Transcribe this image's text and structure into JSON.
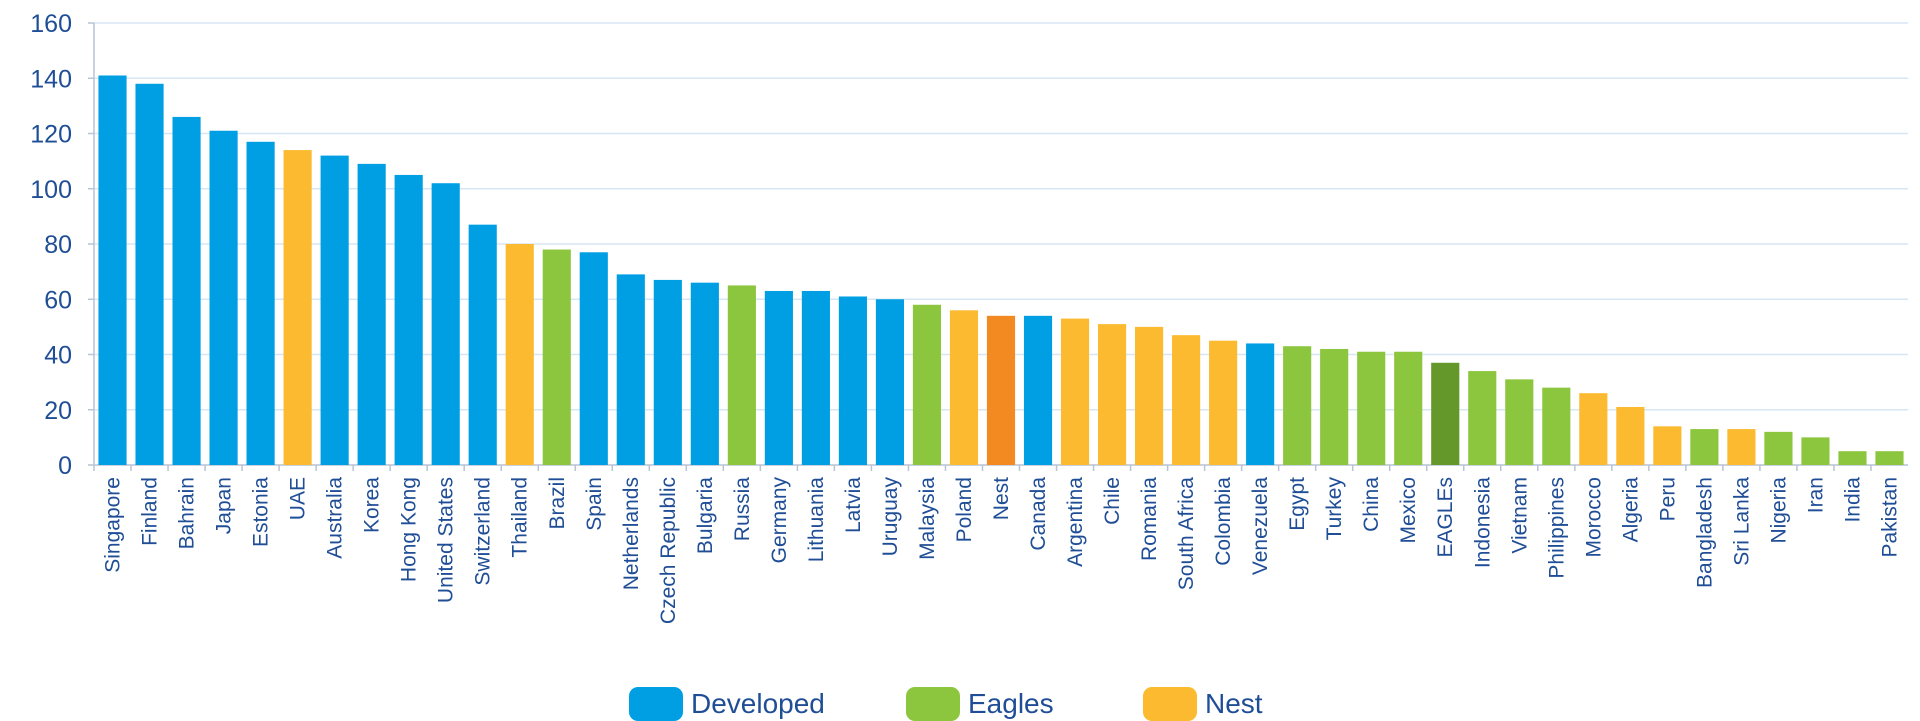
{
  "chart_data": {
    "type": "bar",
    "title": "",
    "xlabel": "",
    "ylabel": "",
    "ylim": [
      0,
      160
    ],
    "yticks": [
      "0",
      "20",
      "40",
      "60",
      "80",
      "100",
      "120",
      "140",
      "160"
    ],
    "grid": true,
    "legend_position": "bottom-center",
    "legend": [
      {
        "name": "Developed",
        "color": "#009fe3"
      },
      {
        "name": "Eagles",
        "color": "#8cc63e"
      },
      {
        "name": "Nest",
        "color": "#fbba2f"
      }
    ],
    "highlight_colors": {
      "EAGLEs": "#65982a",
      "Nest": "#f28a21"
    },
    "categories": [
      "Singapore",
      "Finland",
      "Bahrain",
      "Japan",
      "Estonia",
      "UAE",
      "Australia",
      "Korea",
      "Hong Kong",
      "United States",
      "Switzerland",
      "Thailand",
      "Brazil",
      "Spain",
      "Netherlands",
      "Czech Republic",
      "Bulgaria",
      "Russia",
      "Germany",
      "Lithuania",
      "Latvia",
      "Uruguay",
      "Malaysia",
      "Poland",
      "Nest",
      "Canada",
      "Argentina",
      "Chile",
      "Romania",
      "South Africa",
      "Colombia",
      "Venezuela",
      "Egypt",
      "Turkey",
      "China",
      "Mexico",
      "EAGLEs",
      "Indonesia",
      "Vietnam",
      "Philippines",
      "Morocco",
      "Algeria",
      "Peru",
      "Bangladesh",
      "Sri Lanka",
      "Nigeria",
      "Iran",
      "India",
      "Pakistan"
    ],
    "values": [
      141,
      138,
      126,
      121,
      117,
      114,
      112,
      109,
      105,
      102,
      87,
      80,
      78,
      77,
      69,
      67,
      66,
      65,
      63,
      63,
      61,
      60,
      58,
      56,
      54,
      54,
      53,
      51,
      50,
      47,
      45,
      44,
      43,
      42,
      41,
      41,
      37,
      34,
      31,
      28,
      26,
      21,
      14,
      13,
      13,
      12,
      10,
      5,
      5
    ],
    "groups": [
      "Developed",
      "Developed",
      "Developed",
      "Developed",
      "Developed",
      "Nest",
      "Developed",
      "Developed",
      "Developed",
      "Developed",
      "Developed",
      "Nest",
      "Eagles",
      "Developed",
      "Developed",
      "Developed",
      "Developed",
      "Eagles",
      "Developed",
      "Developed",
      "Developed",
      "Developed",
      "Eagles",
      "Nest",
      "Nest-aggregate",
      "Developed",
      "Nest",
      "Nest",
      "Nest",
      "Nest",
      "Nest",
      "Developed",
      "Eagles",
      "Eagles",
      "Eagles",
      "Eagles",
      "Eagles-aggregate",
      "Eagles",
      "Eagles",
      "Eagles",
      "Nest",
      "Nest",
      "Nest",
      "Eagles",
      "Nest",
      "Eagles",
      "Eagles",
      "Eagles",
      "Eagles"
    ]
  }
}
